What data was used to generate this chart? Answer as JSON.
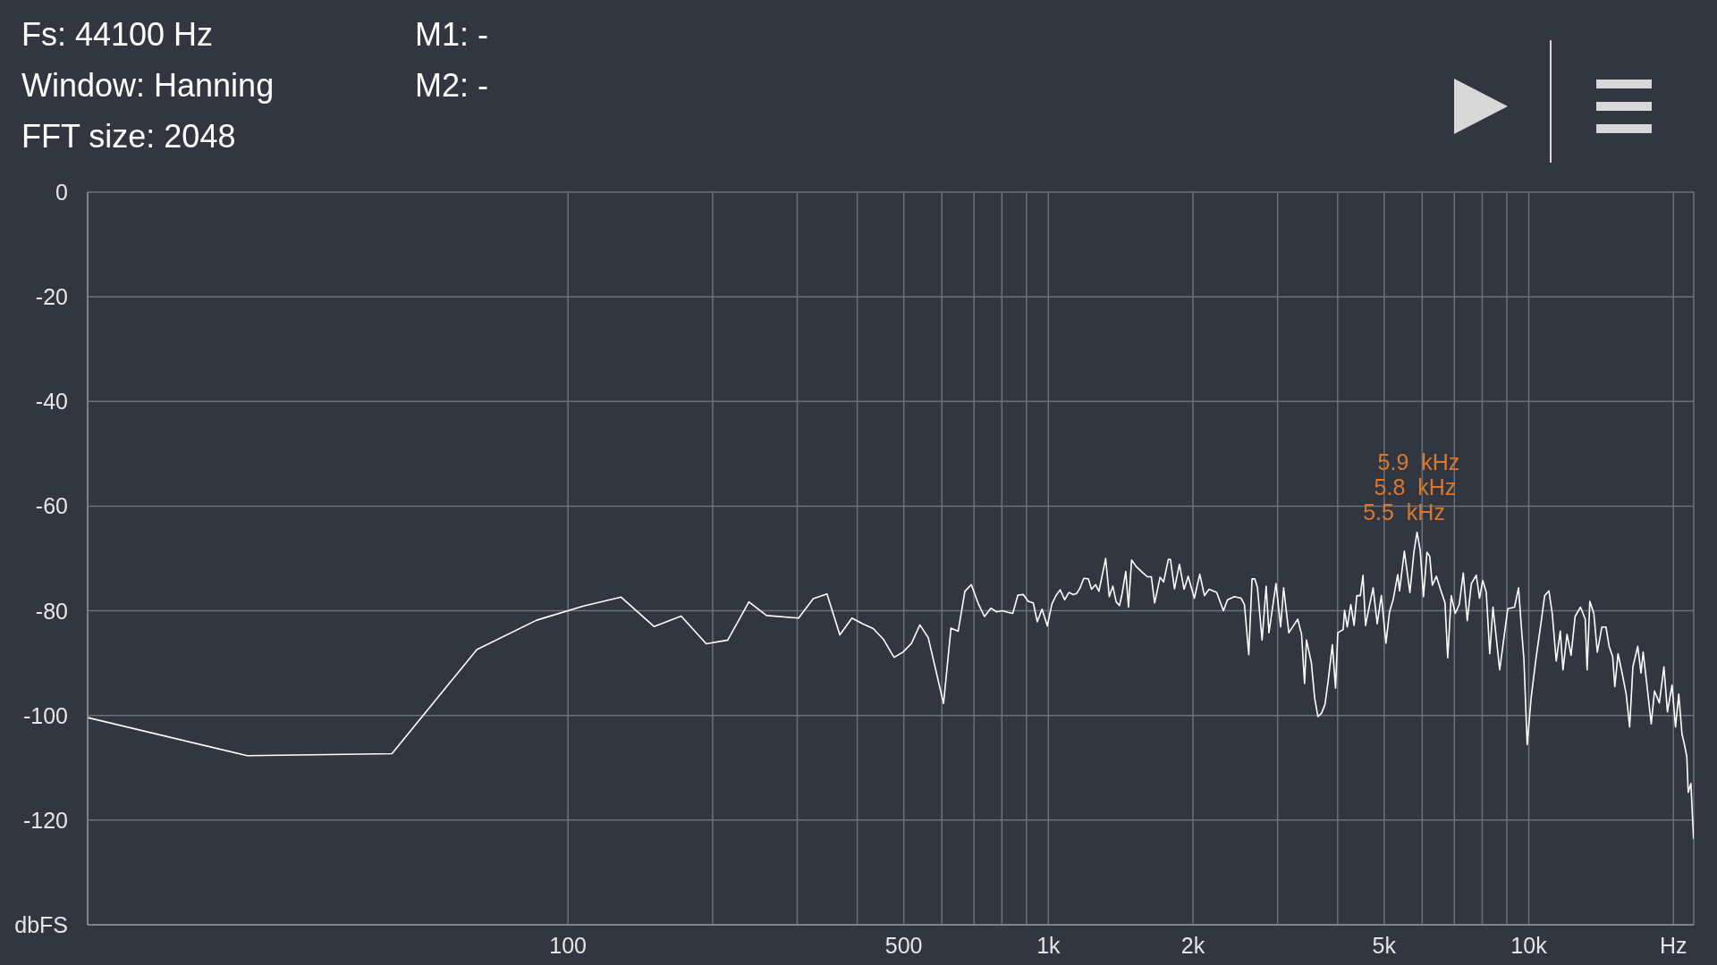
{
  "chart_data": {
    "type": "line",
    "annotations": [
      "Fs: 44100 Hz",
      "Window: Hanning",
      "FFT size: 2048",
      "M1: -",
      "M2: -",
      {
        "text": "5.9  kHz",
        "x": 5900,
        "y": -65
      },
      {
        "text": "5.8  kHz",
        "x": 5800,
        "y": -68
      },
      {
        "text": "5.5  kHz",
        "x": 5500,
        "y": -68.6
      }
    ],
    "x": [
      10,
      21.5,
      43,
      64.6,
      86,
      107.7,
      129,
      151,
      172,
      194,
      215,
      238,
      259,
      302,
      324,
      346,
      368,
      390,
      411,
      432,
      454,
      477,
      498,
      519,
      540,
      562,
      605,
      627,
      649,
      670,
      691,
      715,
      736,
      759,
      780,
      802,
      823,
      843,
      864,
      887,
      908,
      930,
      948,
      970,
      995,
      1017,
      1037,
      1058,
      1081,
      1103,
      1126,
      1145,
      1163,
      1185,
      1211,
      1230,
      1254,
      1274,
      1316,
      1339,
      1362,
      1384,
      1406,
      1424,
      1449,
      1468,
      1490,
      1525,
      1575,
      1607,
      1638,
      1664,
      1708,
      1737,
      1777,
      1795,
      1830,
      1874,
      1916,
      1954,
      2013,
      2066,
      2113,
      2160,
      2240,
      2314,
      2360,
      2439,
      2519,
      2559,
      2613,
      2654,
      2689,
      2724,
      2785,
      2840,
      2878,
      2977,
      3044,
      3088,
      3166,
      3304,
      3365,
      3414,
      3445,
      3527,
      3583,
      3640,
      3702,
      3765,
      3824,
      3900,
      3961,
      4003,
      4108,
      4135,
      4189,
      4261,
      4328,
      4385,
      4460,
      4518,
      4572,
      4650,
      4742,
      4836,
      4933,
      5043,
      5130,
      5219,
      5336,
      5382,
      5508,
      5656,
      5766,
      5853,
      5944,
      6037,
      6138,
      6219,
      6299,
      6423,
      6548,
      6693,
      6780,
      6895,
      7029,
      7166,
      7305,
      7447,
      7594,
      7775,
      7897,
      8020,
      8157,
      8294,
      8423,
      8699,
      8846,
      9043,
      9340,
      9521,
      9645,
      9770,
      9923,
      10117,
      10355,
      10598,
      10791,
      11016,
      11189,
      11406,
      11630,
      11782,
      12012,
      12246,
      12486,
      12812,
      13110,
      13227,
      13398,
      13659,
      13890,
      14198,
      14475,
      14701,
      14950,
      15105,
      15340,
      15641,
      15948,
      16218,
      16471,
      16859,
      17124,
      17302,
      17618,
      17986,
      18268,
      18698,
      19113,
      19437,
      19870,
      20206,
      20522,
      20843,
      21059,
      21332,
      21470,
      21749,
      22031
    ],
    "series": [
      {
        "color": "#ffffff",
        "values": [
          -100.4,
          -107.7,
          -107.3,
          -87.4,
          -81.8,
          -79.1,
          -77.4,
          -83,
          -81,
          -86.3,
          -85.6,
          -78.3,
          -80.9,
          -81.4,
          -77.7,
          -76.8,
          -84.6,
          -81.4,
          -82.5,
          -83.4,
          -85.5,
          -88.9,
          -87.9,
          -86.2,
          -82.7,
          -85.1,
          -97.7,
          -83.3,
          -83.9,
          -76.3,
          -75,
          -78.7,
          -81.1,
          -79.5,
          -80.2,
          -80,
          -80.3,
          -80.5,
          -77,
          -76.9,
          -78.2,
          -78.5,
          -82.1,
          -79.7,
          -82.9,
          -78.7,
          -77.1,
          -76,
          -77.9,
          -76.5,
          -76.9,
          -76.7,
          -75.7,
          -73.8,
          -73.9,
          -75.9,
          -75,
          -76.3,
          -70,
          -77.3,
          -75.3,
          -78.3,
          -79,
          -76.7,
          -72.5,
          -79.3,
          -70.3,
          -71.6,
          -72.8,
          -73.5,
          -73.5,
          -78.5,
          -73.6,
          -74.5,
          -70.2,
          -70.2,
          -75.8,
          -71.1,
          -75.9,
          -73.4,
          -77.6,
          -73,
          -77.1,
          -75.9,
          -76.5,
          -80,
          -77.9,
          -77.3,
          -77.6,
          -78.8,
          -88.4,
          -73.9,
          -73.9,
          -75.6,
          -85.6,
          -75.3,
          -84.2,
          -74.8,
          -83.1,
          -75.6,
          -84.2,
          -81.6,
          -84.5,
          -93.9,
          -85.6,
          -89.9,
          -96.7,
          -100.2,
          -99.6,
          -97.9,
          -93.3,
          -86.5,
          -94.8,
          -84.2,
          -83.6,
          -79.9,
          -83.1,
          -78.8,
          -82.8,
          -77.1,
          -77.1,
          -73.2,
          -82.8,
          -79.4,
          -75.6,
          -82.5,
          -77.1,
          -86.2,
          -80.2,
          -77.9,
          -73.1,
          -76.2,
          -68.6,
          -76.5,
          -68.8,
          -65,
          -68.5,
          -77.3,
          -68.8,
          -69.6,
          -75.1,
          -73.4,
          -75.9,
          -78.5,
          -89,
          -77.1,
          -80.5,
          -78.8,
          -72.8,
          -81.9,
          -74.8,
          -73.2,
          -77.6,
          -74.2,
          -76.5,
          -88.2,
          -79.3,
          -91.3,
          -86.2,
          -79.6,
          -79.3,
          -75.6,
          -82.8,
          -89.3,
          -105.6,
          -96.5,
          -89,
          -82.5,
          -77.1,
          -76.2,
          -80.5,
          -89.6,
          -83.9,
          -91.3,
          -84.5,
          -88.5,
          -81.1,
          -79.3,
          -81.6,
          -91.3,
          -78.2,
          -80.5,
          -87.9,
          -83.1,
          -83.1,
          -86.8,
          -88.8,
          -94.5,
          -88.2,
          -91.9,
          -95.9,
          -102.2,
          -90.7,
          -86.8,
          -91.9,
          -87.9,
          -94.2,
          -101.6,
          -95.3,
          -97.6,
          -90.7,
          -99.3,
          -94.2,
          -102.2,
          -95.9,
          -103.6,
          -105.3,
          -107.9,
          -114.7,
          -113,
          -123.6
        ]
      }
    ],
    "xlim": [
      10,
      22050
    ],
    "xticks": [
      100,
      {
        "value": 200,
        "label": null
      },
      {
        "value": 300,
        "label": null
      },
      {
        "value": 400,
        "label": null
      },
      500,
      {
        "value": 600,
        "label": null
      },
      {
        "value": 700,
        "label": null
      },
      {
        "value": 800,
        "label": null
      },
      {
        "value": 900,
        "label": null
      },
      {
        "value": 1000,
        "label": "1k"
      },
      {
        "value": 2000,
        "label": "2k"
      },
      {
        "value": 3000,
        "label": null
      },
      {
        "value": 4000,
        "label": null
      },
      {
        "value": 5000,
        "label": "5k"
      },
      {
        "value": 6000,
        "label": null
      },
      {
        "value": 7000,
        "label": null
      },
      {
        "value": 8000,
        "label": null
      },
      {
        "value": 9000,
        "label": null
      },
      {
        "value": 10000,
        "label": "10k"
      },
      {
        "value": 20000,
        "label": "Hz"
      }
    ],
    "ylim": [
      -140,
      0
    ],
    "yticks": [
      0,
      -20,
      -40,
      -60,
      -80,
      -100,
      -120,
      {
        "value": -140,
        "label": "dbFS"
      }
    ],
    "log": "x",
    "grid": true
  }
}
